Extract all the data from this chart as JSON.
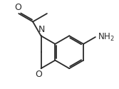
{
  "bg_color": "#ffffff",
  "line_color": "#2a2a2a",
  "text_color": "#2a2a2a",
  "line_width": 1.3,
  "font_size": 8.5,
  "xlim": [
    -3.5,
    4.5
  ],
  "ylim": [
    -3.2,
    3.8
  ]
}
